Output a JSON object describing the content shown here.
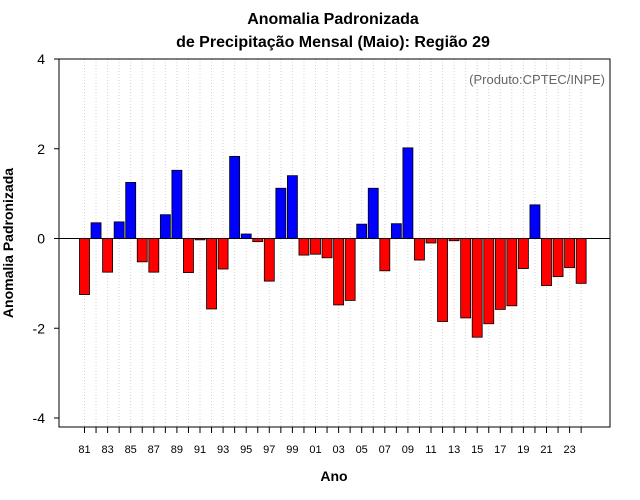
{
  "chart_data": {
    "type": "bar",
    "title_line1": "Anomalia Padronizada",
    "title_line2": "de Precipitação Mensal (Maio): Região 29",
    "xlabel": "Ano",
    "ylabel": "Anomalia Padronizada",
    "credit": "(Produto:CPTEC/INPE)",
    "ylim": [
      -4,
      4
    ],
    "yticks": [
      "-4",
      "-2",
      "0",
      "2",
      "4"
    ],
    "categories": [
      "81",
      "82",
      "83",
      "84",
      "85",
      "86",
      "87",
      "88",
      "89",
      "90",
      "91",
      "92",
      "93",
      "94",
      "95",
      "96",
      "97",
      "98",
      "99",
      "00",
      "01",
      "02",
      "03",
      "04",
      "05",
      "06",
      "07",
      "08",
      "09",
      "10",
      "11",
      "12",
      "13",
      "14",
      "15",
      "16",
      "17",
      "18",
      "19",
      "20",
      "21",
      "22",
      "23",
      "24"
    ],
    "xtick_labels": [
      "81",
      "83",
      "85",
      "87",
      "89",
      "91",
      "93",
      "95",
      "97",
      "99",
      "01",
      "03",
      "05",
      "07",
      "09",
      "11",
      "13",
      "15",
      "17",
      "19",
      "21",
      "23"
    ],
    "values": [
      -1.25,
      0.35,
      -0.75,
      0.37,
      1.25,
      -0.52,
      -0.75,
      0.53,
      1.52,
      -0.76,
      -0.03,
      -1.57,
      -0.68,
      1.83,
      0.1,
      -0.07,
      -0.95,
      1.12,
      1.4,
      -0.37,
      -0.35,
      -0.43,
      -1.48,
      -1.38,
      0.32,
      1.12,
      -0.72,
      0.33,
      2.02,
      -0.48,
      -0.1,
      -1.85,
      -0.05,
      -1.77,
      -2.2,
      -1.9,
      -1.58,
      -1.5,
      -0.67,
      0.75,
      -1.05,
      -0.85,
      -0.65,
      -1.0
    ],
    "colors": {
      "positive": "#0000ff",
      "negative": "#ff0000",
      "grid": "#d3d3d3"
    },
    "grid": true
  }
}
